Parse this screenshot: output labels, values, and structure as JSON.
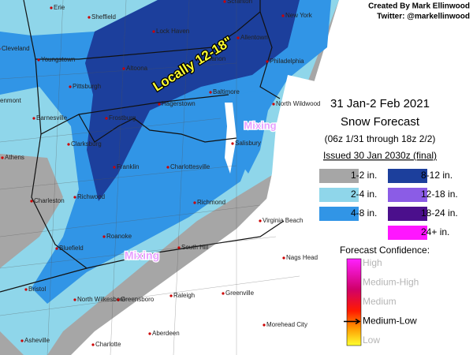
{
  "credits": {
    "author": "Created By Mark Ellinwood",
    "twitter": "Twitter: @markellinwood"
  },
  "title": {
    "line1": "31 Jan-2 Feb 2021",
    "line2": "Snow Forecast",
    "period": "(06z 1/31 through 18z 2/2)",
    "issued": "Issued 30 Jan 2030z (final)"
  },
  "legend": {
    "items": [
      {
        "label": "1-2 in.",
        "color": "#a6a6a6"
      },
      {
        "label": "2-4 in.",
        "color": "#8fd6ea"
      },
      {
        "label": "4-8 in.",
        "color": "#3195e6"
      },
      {
        "label": "8-12 in.",
        "color": "#1c3f9c"
      },
      {
        "label": "12-18 in.",
        "color": "#8b5ce6"
      },
      {
        "label": "18-24 in.",
        "color": "#4b0f8c"
      },
      {
        "label": "24+ in.",
        "color": "#ff16ff"
      }
    ]
  },
  "confidence": {
    "title": "Forecast Confidence:",
    "levels": [
      "High",
      "Medium-High",
      "Medium",
      "Medium-Low",
      "Low"
    ],
    "selected": "Medium-Low"
  },
  "annotations": [
    {
      "text": "Locally 12-18\""
    },
    {
      "text": "Mixing"
    },
    {
      "text": "Mixing"
    }
  ],
  "cities": [
    "Erie",
    "Sheffield",
    "Scranton",
    "New York",
    "Cleveland",
    "Youngstown",
    "Lock Haven",
    "Allentown",
    "Lebanon",
    "Philadelphia",
    "Altoona",
    "Pittsburgh",
    "Baltimore",
    "Hagerstown",
    "North Wildwood",
    "enmont",
    "Frostburg",
    "Barnesville",
    "Athens",
    "Clarksburg",
    "Salisbury",
    "Franklin",
    "Charlottesville",
    "Richwood",
    "Charleston",
    "Richmond",
    "Virginia Beach",
    "Roanoke",
    "Bluefield",
    "South Hill",
    "Nags Head",
    "Bristol",
    "North Wilkesboro",
    "Greensboro",
    "Raleigh",
    "Greenville",
    "Morehead City",
    "Aberdeen",
    "Asheville",
    "Charlotte"
  ]
}
